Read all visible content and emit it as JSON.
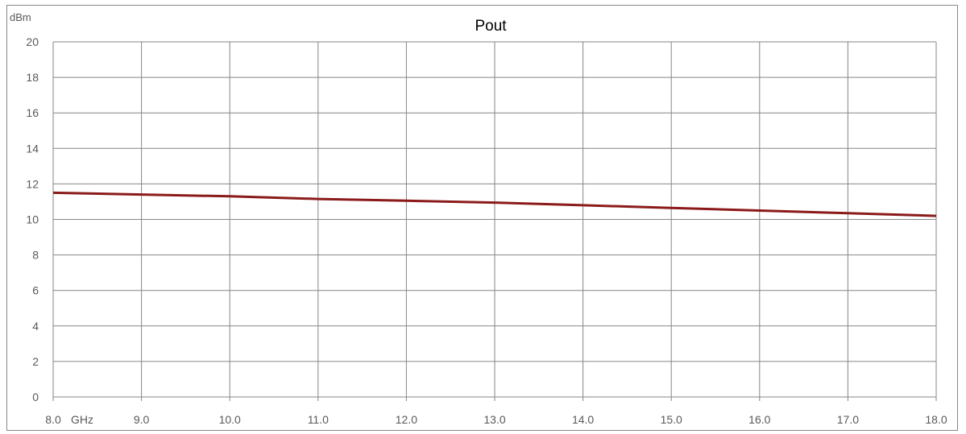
{
  "chart_data": {
    "type": "line",
    "title": "Pout",
    "ylabel": "dBm",
    "xlabel": "GHz",
    "x_tick_labels": [
      "8.0",
      "9.0",
      "10.0",
      "11.0",
      "12.0",
      "13.0",
      "14.0",
      "15.0",
      "16.0",
      "17.0",
      "18.0"
    ],
    "y_tick_labels": [
      "0",
      "2",
      "4",
      "6",
      "8",
      "10",
      "12",
      "14",
      "16",
      "18",
      "20"
    ],
    "xlim": [
      8.0,
      18.0
    ],
    "ylim": [
      0,
      20
    ],
    "grid": true,
    "legend": "none",
    "series": [
      {
        "color": "#8b1a1a",
        "x": [
          8.0,
          9.0,
          10.0,
          11.0,
          12.0,
          13.0,
          14.0,
          15.0,
          16.0,
          17.0,
          18.0
        ],
        "y": [
          11.5,
          11.4,
          11.3,
          11.15,
          11.05,
          10.95,
          10.8,
          10.65,
          10.5,
          10.35,
          10.2
        ]
      }
    ]
  }
}
